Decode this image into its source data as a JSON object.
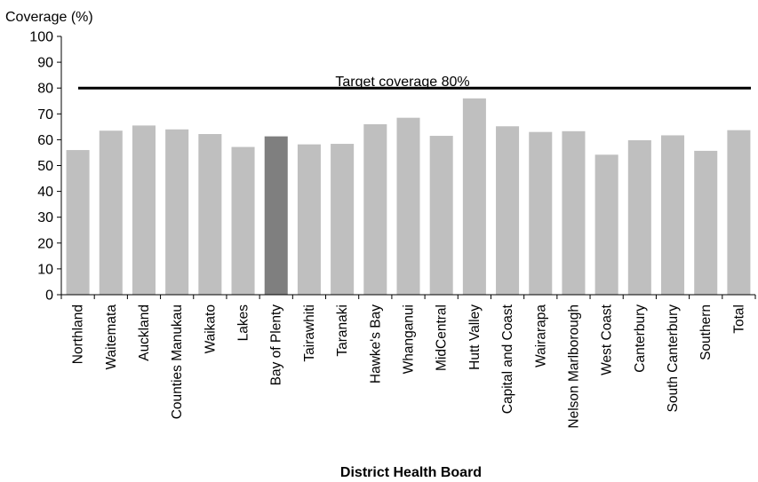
{
  "chart_data": {
    "type": "bar",
    "ylabel": "Coverage (%)",
    "xlabel": "District Health Board",
    "ylim": [
      0,
      100
    ],
    "yticks": [
      0,
      10,
      20,
      30,
      40,
      50,
      60,
      70,
      80,
      90,
      100
    ],
    "grid": false,
    "categories": [
      "Northland",
      "Waitemata",
      "Auckland",
      "Counties Manukau",
      "Waikato",
      "Lakes",
      "Bay of Plenty",
      "Tairawhiti",
      "Taranaki",
      "Hawke's Bay",
      "Whanganui",
      "MidCentral",
      "Hutt Valley",
      "Capital and Coast",
      "Wairarapa",
      "Nelson Marlborough",
      "West Coast",
      "Canterbury",
      "South Canterbury",
      "Southern",
      "Total"
    ],
    "values": [
      56,
      63.5,
      65.5,
      64,
      62.2,
      57.2,
      61.3,
      58.2,
      58.4,
      66,
      68.5,
      61.5,
      76,
      65.2,
      63,
      63.3,
      54.2,
      59.8,
      61.7,
      55.7,
      63.7
    ],
    "highlight_category": "Bay of Plenty",
    "target_line": {
      "value": 80,
      "label": "Target coverage 80%"
    },
    "colors": {
      "bar": "#bfbfbf",
      "highlight": "#7f7f7f",
      "line": "#000000",
      "axis": "#000000"
    }
  }
}
